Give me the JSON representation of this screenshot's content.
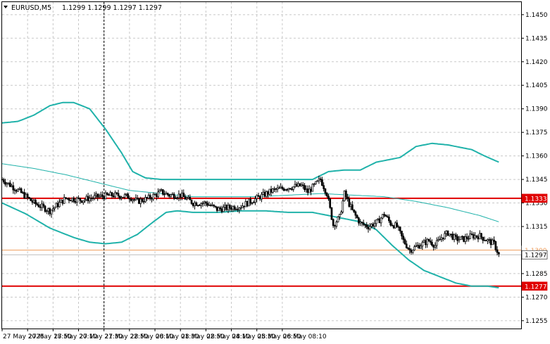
{
  "header": {
    "symbol_label": "EURUSD,M5",
    "ohlc_text": "1.1299 1.1299 1.1297 1.1297"
  },
  "colors": {
    "band": "#20b2aa",
    "candle": "#000000",
    "level_line": "#e00000",
    "orange_line": "#f0a060",
    "grid": "#c8c8c8"
  },
  "chart_data": {
    "type": "candlestick",
    "symbol": "EURUSD",
    "timeframe": "M5",
    "ylim": [
      1.125,
      1.1458
    ],
    "y_ticks": [
      "1.1450",
      "1.1435",
      "1.1420",
      "1.1405",
      "1.1390",
      "1.1375",
      "1.1360",
      "1.1345",
      "1.1330",
      "1.1315",
      "1.1300",
      "1.1285",
      "1.1270",
      "1.1255"
    ],
    "x_ticks": [
      "27 May 2025",
      "27 May 18:50",
      "27 May 20:10",
      "27 May 21:30",
      "27 May 22:50",
      "28 May 00:10",
      "28 May 01:30",
      "28 May 02:50",
      "28 May 04:10",
      "28 May 05:30",
      "28 May 06:50",
      "28 May 08:10"
    ],
    "bar_interval_minutes": 5,
    "price_tags": [
      {
        "label": "1.1333",
        "value": 1.1333,
        "style": "red-filled"
      },
      {
        "label": "1.1300",
        "value": 1.13,
        "style": "orange"
      },
      {
        "label": "1.1297",
        "value": 1.1297,
        "style": "current"
      },
      {
        "label": "1.1277",
        "value": 1.1277,
        "style": "red-filled"
      }
    ],
    "horizontal_levels": [
      {
        "value": 1.1333,
        "color": "#e00000",
        "width": 2
      },
      {
        "value": 1.1277,
        "color": "#e00000",
        "width": 2
      },
      {
        "value": 1.13,
        "color": "#f0a060",
        "width": 1
      },
      {
        "value": 1.1297,
        "color": "#bbbbbb",
        "width": 1
      }
    ],
    "vertical_marker": {
      "time": "27 May 22:50",
      "style": "dashed"
    },
    "close_path": [
      [
        0,
        1.1345
      ],
      [
        10,
        1.1338
      ],
      [
        20,
        1.133
      ],
      [
        30,
        1.1325
      ],
      [
        40,
        1.1333
      ],
      [
        50,
        1.1332
      ],
      [
        60,
        1.1334
      ],
      [
        70,
        1.1335
      ],
      [
        80,
        1.1334
      ],
      [
        85,
        1.1331
      ],
      [
        92,
        1.1333
      ],
      [
        100,
        1.1337
      ],
      [
        105,
        1.1335
      ],
      [
        112,
        1.1335
      ],
      [
        120,
        1.133
      ],
      [
        128,
        1.133
      ],
      [
        135,
        1.1326
      ],
      [
        150,
        1.1328
      ],
      [
        160,
        1.1333
      ],
      [
        170,
        1.1338
      ],
      [
        180,
        1.134
      ],
      [
        188,
        1.1341
      ],
      [
        192,
        1.1337
      ],
      [
        200,
        1.1345
      ],
      [
        204,
        1.1336
      ],
      [
        208,
        1.1316
      ],
      [
        212,
        1.1321
      ],
      [
        215,
        1.1336
      ],
      [
        220,
        1.1325
      ],
      [
        225,
        1.1317
      ],
      [
        230,
        1.1315
      ],
      [
        236,
        1.1318
      ],
      [
        240,
        1.1323
      ],
      [
        244,
        1.1317
      ],
      [
        248,
        1.1315
      ],
      [
        252,
        1.1306
      ],
      [
        256,
        1.13
      ],
      [
        262,
        1.1303
      ],
      [
        268,
        1.1306
      ],
      [
        272,
        1.1303
      ],
      [
        276,
        1.1308
      ],
      [
        280,
        1.1311
      ],
      [
        285,
        1.1307
      ],
      [
        290,
        1.1307
      ],
      [
        295,
        1.1309
      ],
      [
        300,
        1.1309
      ],
      [
        305,
        1.1306
      ],
      [
        309,
        1.1304
      ],
      [
        312,
        1.1297
      ]
    ],
    "bollinger_bands": {
      "upper": [
        [
          0,
          1.1381
        ],
        [
          10,
          1.1382
        ],
        [
          20,
          1.1386
        ],
        [
          30,
          1.1392
        ],
        [
          38,
          1.1394
        ],
        [
          45,
          1.1394
        ],
        [
          55,
          1.139
        ],
        [
          65,
          1.1377
        ],
        [
          75,
          1.1362
        ],
        [
          82,
          1.135
        ],
        [
          90,
          1.1346
        ],
        [
          100,
          1.1345
        ],
        [
          110,
          1.1345
        ],
        [
          120,
          1.1345
        ],
        [
          130,
          1.1345
        ],
        [
          140,
          1.1345
        ],
        [
          150,
          1.1345
        ],
        [
          160,
          1.1345
        ],
        [
          170,
          1.1345
        ],
        [
          180,
          1.1345
        ],
        [
          195,
          1.1345
        ],
        [
          205,
          1.135
        ],
        [
          215,
          1.1351
        ],
        [
          225,
          1.1351
        ],
        [
          235,
          1.1356
        ],
        [
          250,
          1.1359
        ],
        [
          260,
          1.1366
        ],
        [
          270,
          1.1368
        ],
        [
          280,
          1.1367
        ],
        [
          295,
          1.1364
        ],
        [
          303,
          1.136
        ],
        [
          312,
          1.1356
        ]
      ],
      "middle": [
        [
          0,
          1.1355
        ],
        [
          20,
          1.1352
        ],
        [
          40,
          1.1348
        ],
        [
          60,
          1.1343
        ],
        [
          80,
          1.1338
        ],
        [
          100,
          1.1336
        ],
        [
          120,
          1.1334
        ],
        [
          140,
          1.1334
        ],
        [
          160,
          1.1334
        ],
        [
          180,
          1.1335
        ],
        [
          200,
          1.1336
        ],
        [
          220,
          1.1335
        ],
        [
          240,
          1.1334
        ],
        [
          260,
          1.1331
        ],
        [
          280,
          1.1327
        ],
        [
          300,
          1.1322
        ],
        [
          312,
          1.1318
        ]
      ],
      "lower": [
        [
          0,
          1.133
        ],
        [
          15,
          1.1323
        ],
        [
          30,
          1.1314
        ],
        [
          45,
          1.1308
        ],
        [
          55,
          1.1305
        ],
        [
          65,
          1.1304
        ],
        [
          75,
          1.1305
        ],
        [
          85,
          1.131
        ],
        [
          95,
          1.1318
        ],
        [
          103,
          1.1324
        ],
        [
          110,
          1.1325
        ],
        [
          120,
          1.1324
        ],
        [
          135,
          1.1324
        ],
        [
          150,
          1.1325
        ],
        [
          165,
          1.1325
        ],
        [
          180,
          1.1324
        ],
        [
          195,
          1.1324
        ],
        [
          205,
          1.1322
        ],
        [
          215,
          1.132
        ],
        [
          225,
          1.1318
        ],
        [
          235,
          1.1313
        ],
        [
          245,
          1.1303
        ],
        [
          255,
          1.1294
        ],
        [
          265,
          1.1287
        ],
        [
          275,
          1.1283
        ],
        [
          285,
          1.1279
        ],
        [
          295,
          1.1277
        ],
        [
          305,
          1.1277
        ],
        [
          312,
          1.1276
        ]
      ]
    }
  }
}
